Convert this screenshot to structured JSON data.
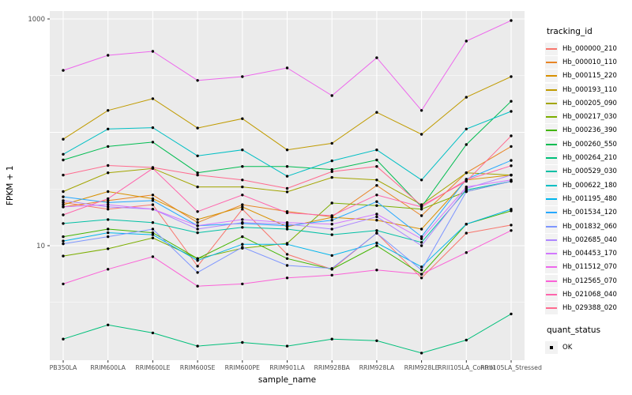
{
  "axes": {
    "y_tick_labels": [
      "1000",
      "10"
    ],
    "x_tick_labels": [
      "PB350LA",
      "RRIM600LA",
      "RRIM600LE",
      "RRIM600SE",
      "RRIM600PE",
      "RRIM901LA",
      "RRIM928BA",
      "RRIM928LA",
      "RRIM928LE",
      "RRII105LA_Control",
      "RRII105LA_Stressed"
    ]
  },
  "legend": {
    "title": "tracking_id"
  },
  "legend2": {
    "title": "quant_status",
    "items": [
      {
        "label": "OK"
      }
    ]
  },
  "style": {
    "panel_bg": "#EBEBEB",
    "grid_color": "#FFFFFF",
    "axis_text_color": "#4D4D4D",
    "tick_color": "#333333",
    "point_color": "#000000"
  },
  "chart_data": {
    "type": "line",
    "title": "",
    "xlabel": "sample_name",
    "ylabel": "FPKM + 1",
    "y_scale": "log10",
    "ylim": [
      1,
      1180
    ],
    "y_ticks": [
      10,
      1000
    ],
    "y_gridlines_major": [
      10,
      100,
      1000
    ],
    "y_gridlines_minor": [
      3.162,
      31.62,
      316.2
    ],
    "grid": true,
    "legend_position": "right",
    "x_categories": [
      "PB350LA",
      "RRIM600LA",
      "RRIM600LE",
      "RRIM600SE",
      "RRIM600PE",
      "RRIM901LA",
      "RRIM928BA",
      "RRIM928LA",
      "RRIM928LE",
      "RRII105LA_Control",
      "RRII105LA_Stressed"
    ],
    "series": [
      {
        "name": "Hb_000000_210",
        "color": "#F8766D",
        "values": [
          24,
          21,
          23,
          6.6,
          21,
          8.4,
          6.2,
          12.9,
          5.2,
          12.9,
          15.2
        ]
      },
      {
        "name": "Hb_000010_110",
        "color": "#E88526",
        "values": [
          22,
          25,
          28,
          16,
          23,
          20,
          18,
          34,
          18.4,
          44,
          75
        ]
      },
      {
        "name": "Hb_000115_220",
        "color": "#D89000",
        "values": [
          23,
          30,
          26,
          17,
          22,
          14.7,
          17.8,
          16.8,
          14,
          38,
          42
        ]
      },
      {
        "name": "Hb_000193_110",
        "color": "#C09B00",
        "values": [
          87,
          156,
          198,
          109,
          132,
          70,
          80,
          150,
          96,
          204,
          310
        ]
      },
      {
        "name": "Hb_000205_090",
        "color": "#A3A500",
        "values": [
          30,
          44,
          48,
          33,
          33,
          29.8,
          40,
          38,
          23,
          44,
          42
        ]
      },
      {
        "name": "Hb_000217_030",
        "color": "#7CAE00",
        "values": [
          8.1,
          9.4,
          11.7,
          7.7,
          9.5,
          10.5,
          23.8,
          22.6,
          21,
          30,
          37
        ]
      },
      {
        "name": "Hb_000236_390",
        "color": "#42B500",
        "values": [
          12,
          14,
          13,
          7.7,
          12,
          7.7,
          6.2,
          10,
          5.6,
          15.5,
          20.3
        ]
      },
      {
        "name": "Hb_000260_550",
        "color": "#00BC51",
        "values": [
          57,
          75,
          82,
          44,
          50,
          50,
          47,
          57,
          22,
          78,
          188
        ]
      },
      {
        "name": "Hb_000264_210",
        "color": "#00BF7A",
        "values": [
          1.5,
          2.0,
          1.7,
          1.3,
          1.4,
          1.3,
          1.5,
          1.45,
          1.13,
          1.47,
          2.5
        ]
      },
      {
        "name": "Hb_000529_030",
        "color": "#00C0A5",
        "values": [
          15.7,
          17,
          16,
          13,
          14.5,
          14,
          12.5,
          13.6,
          10.7,
          31,
          37
        ]
      },
      {
        "name": "Hb_000622_180",
        "color": "#00BFC4",
        "values": [
          64,
          107,
          110,
          62,
          70,
          41,
          56,
          70,
          38,
          107,
          153
        ]
      },
      {
        "name": "Hb_001195_480",
        "color": "#00B5EC",
        "values": [
          11,
          13,
          12.5,
          7.4,
          10.3,
          10.3,
          8.2,
          10.6,
          6.5,
          15.5,
          21
        ]
      },
      {
        "name": "Hb_001534_120",
        "color": "#27A8FF",
        "values": [
          27,
          24,
          25,
          15,
          15.7,
          15,
          16.8,
          24.5,
          12,
          38.6,
          56.5
        ]
      },
      {
        "name": "Hb_001832_060",
        "color": "#7E96FF",
        "values": [
          10.4,
          12,
          14,
          5.8,
          9.7,
          6.7,
          6.3,
          12.9,
          6.1,
          30,
          37
        ]
      },
      {
        "name": "Hb_002685_040",
        "color": "#AE87FF",
        "values": [
          25,
          22,
          21,
          14,
          16,
          15.5,
          14,
          18,
          10,
          32,
          42
        ]
      },
      {
        "name": "Hb_004453_170",
        "color": "#D277FF",
        "values": [
          22,
          23,
          21,
          15,
          17,
          16,
          15.5,
          19,
          11.5,
          33,
          38
        ]
      },
      {
        "name": "Hb_011512_070",
        "color": "#ED68EC",
        "values": [
          352,
          478,
          518,
          287,
          310,
          370,
          211,
          455,
          156,
          638,
          968
        ]
      },
      {
        "name": "Hb_012565_070",
        "color": "#FB61D7",
        "values": [
          4.6,
          6.2,
          8,
          4.4,
          4.6,
          5.2,
          5.5,
          6.1,
          5.6,
          8.7,
          13.6
        ]
      },
      {
        "name": "Hb_021068_040",
        "color": "#FF65AC",
        "values": [
          18.7,
          26,
          48,
          20,
          28,
          19.5,
          18.4,
          28,
          22,
          38,
          50.7
        ]
      },
      {
        "name": "Hb_029388_020",
        "color": "#FF6B8F",
        "values": [
          42,
          51,
          49,
          42,
          38,
          32,
          45,
          50,
          22.6,
          37,
          93
        ]
      }
    ]
  }
}
